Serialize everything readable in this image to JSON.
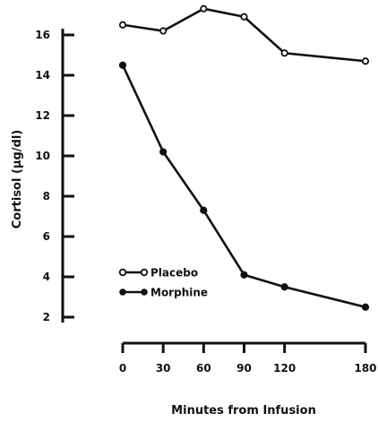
{
  "chart_data": {
    "type": "line",
    "xlabel": "Minutes from Infusion",
    "ylabel": "Cortisol (μg/dl)",
    "x": [
      0,
      30,
      60,
      90,
      120,
      180
    ],
    "x_ticks": [
      "0",
      "30",
      "60",
      "90",
      "120",
      "180"
    ],
    "y_ticks": [
      "2",
      "4",
      "6",
      "8",
      "10",
      "12",
      "14",
      "16"
    ],
    "y_tick_values": [
      2,
      4,
      6,
      8,
      10,
      12,
      14,
      16
    ],
    "xlim": [
      0,
      180
    ],
    "ylim": [
      2,
      16
    ],
    "grid": false,
    "legend_position": "lower-left",
    "series": [
      {
        "name": "Placebo",
        "marker": "open",
        "values": [
          16.5,
          16.2,
          17.3,
          16.9,
          15.1,
          14.7
        ]
      },
      {
        "name": "Morphine",
        "marker": "filled",
        "values": [
          14.5,
          10.2,
          7.3,
          4.1,
          3.5,
          2.5
        ]
      }
    ]
  }
}
